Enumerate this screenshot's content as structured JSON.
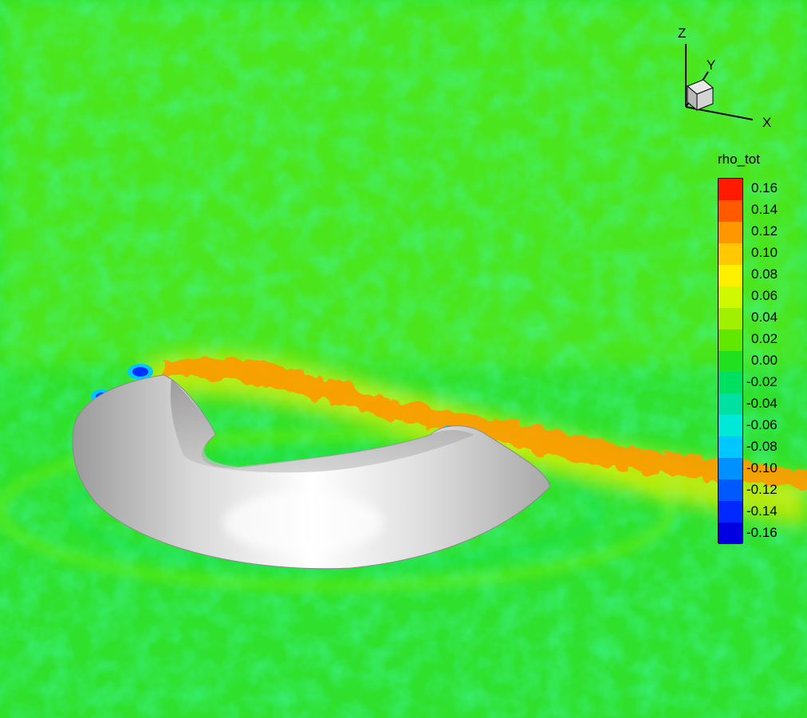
{
  "chart_data": {
    "type": "heatmap",
    "title": "",
    "colorbar": {
      "title": "rho_tot",
      "levels": [
        0.16,
        0.14,
        0.12,
        0.1,
        0.08,
        0.06,
        0.04,
        0.02,
        0.0,
        -0.02,
        -0.04,
        -0.06,
        -0.08,
        -0.1,
        -0.12,
        -0.14,
        -0.16
      ],
      "labels": [
        "0.16",
        "0.14",
        "0.12",
        "0.10",
        "0.08",
        "0.06",
        "0.04",
        "0.02",
        "0.00",
        "-0.02",
        "-0.04",
        "-0.06",
        "-0.08",
        "-0.10",
        "-0.12",
        "-0.14",
        "-0.16"
      ],
      "colors": [
        "#ff1a00",
        "#ff5a00",
        "#ff9800",
        "#ffc800",
        "#fff000",
        "#d0f800",
        "#a0f000",
        "#60e800",
        "#20e020",
        "#00e060",
        "#00e0a0",
        "#00e8d8",
        "#00c8ff",
        "#0090ff",
        "#0058ff",
        "#0028ff",
        "#0000e0"
      ]
    },
    "axes_triad": {
      "x": "X",
      "y": "Y",
      "z": "Z"
    },
    "background_level": 0.0,
    "band_level": 0.12,
    "object": "torus-segment isosurface (gray)"
  }
}
